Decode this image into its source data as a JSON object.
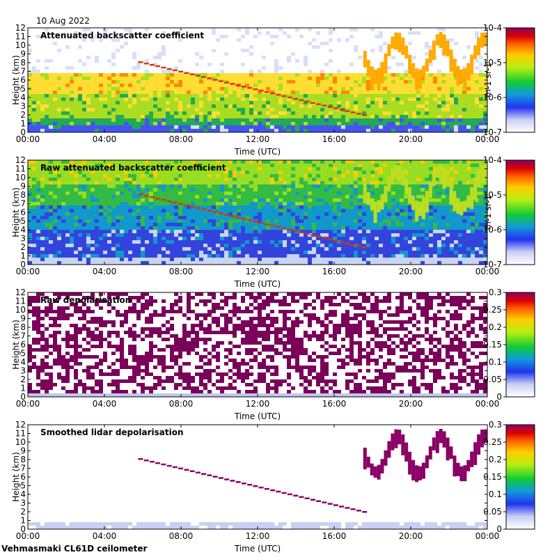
{
  "date": "10 Aug 2022",
  "footer": "Vehmasmaki CL61D ceilometer",
  "chart_data": [
    {
      "type": "heatmap",
      "title": "Attenuated backscatter coefficient",
      "xlabel": "Time (UTC)",
      "ylabel": "Height (km)",
      "x_ticks": [
        "00:00",
        "04:00",
        "08:00",
        "12:00",
        "16:00",
        "20:00",
        "00:00"
      ],
      "y_ticks": [
        "0",
        "1",
        "2",
        "3",
        "4",
        "5",
        "6",
        "7",
        "8",
        "9",
        "10",
        "11",
        "12"
      ],
      "ylim": [
        0,
        12
      ],
      "colorbar": {
        "scale": "log",
        "ticks": [
          "10-7",
          "10-6",
          "10-5",
          "10-4"
        ],
        "label": "m-1 sr-1"
      }
    },
    {
      "type": "heatmap",
      "title": "Raw attenuated backscatter coefficient",
      "xlabel": "Time (UTC)",
      "ylabel": "Height (km)",
      "x_ticks": [
        "00:00",
        "04:00",
        "08:00",
        "12:00",
        "16:00",
        "20:00",
        "00:00"
      ],
      "y_ticks": [
        "0",
        "1",
        "2",
        "3",
        "4",
        "5",
        "6",
        "7",
        "8",
        "9",
        "10",
        "11",
        "12"
      ],
      "ylim": [
        0,
        12
      ],
      "colorbar": {
        "scale": "log",
        "ticks": [
          "10-7",
          "10-6",
          "10-5",
          "10-4"
        ],
        "label": "m-1 sr-1"
      }
    },
    {
      "type": "heatmap",
      "title": "Raw depolarisation",
      "xlabel": "Time (UTC)",
      "ylabel": "Height (km)",
      "x_ticks": [
        "00:00",
        "04:00",
        "08:00",
        "12:00",
        "16:00",
        "20:00",
        "00:00"
      ],
      "y_ticks": [
        "0",
        "1",
        "2",
        "3",
        "4",
        "5",
        "6",
        "7",
        "8",
        "9",
        "10",
        "11",
        "12"
      ],
      "ylim": [
        0,
        12
      ],
      "colorbar": {
        "scale": "linear",
        "ticks": [
          "0",
          "0.05",
          "0.1",
          "0.15",
          "0.2",
          "0.25",
          "0.3"
        ],
        "label": ""
      }
    },
    {
      "type": "heatmap",
      "title": "Smoothed lidar depolarisation",
      "xlabel": "Time (UTC)",
      "ylabel": "Height (km)",
      "x_ticks": [
        "00:00",
        "04:00",
        "08:00",
        "12:00",
        "16:00",
        "20:00",
        "00:00"
      ],
      "y_ticks": [
        "0",
        "1",
        "2",
        "3",
        "4",
        "5",
        "6",
        "7",
        "8",
        "9",
        "10",
        "11",
        "12"
      ],
      "ylim": [
        0,
        12
      ],
      "colorbar": {
        "scale": "linear",
        "ticks": [
          "0",
          "0.05",
          "0.1",
          "0.15",
          "0.2",
          "0.25",
          "0.3"
        ],
        "label": ""
      }
    }
  ]
}
